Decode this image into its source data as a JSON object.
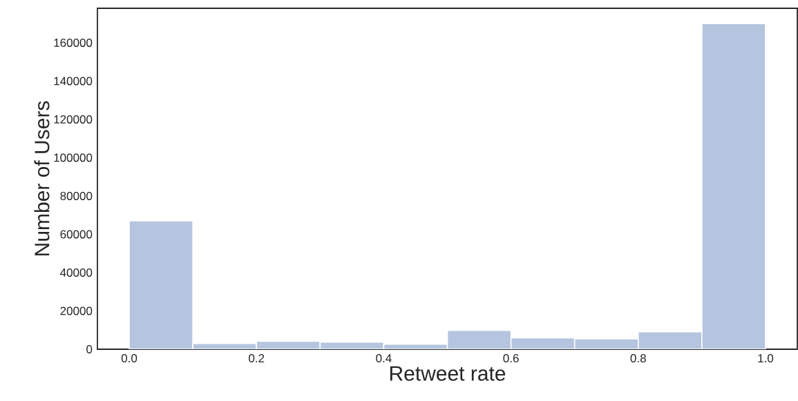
{
  "chart_data": {
    "type": "histogram",
    "xlabel": "Retweet rate",
    "ylabel": "Number of Users",
    "bins": [
      0.0,
      0.1,
      0.2,
      0.3,
      0.4,
      0.5,
      0.6,
      0.7,
      0.8,
      0.9,
      1.0
    ],
    "values": [
      67000,
      3000,
      4200,
      3700,
      2600,
      9800,
      6000,
      5400,
      9100,
      170000
    ],
    "color": "#b5c5df",
    "xlim": [
      -0.05,
      1.05
    ],
    "ylim": [
      0,
      178000
    ],
    "xticks": [
      {
        "value": 0.0,
        "label": "0.0"
      },
      {
        "value": 0.2,
        "label": "0.2"
      },
      {
        "value": 0.4,
        "label": "0.4"
      },
      {
        "value": 0.6,
        "label": "0.6"
      },
      {
        "value": 0.8,
        "label": "0.8"
      },
      {
        "value": 1.0,
        "label": "1.0"
      }
    ],
    "yticks": [
      0,
      20000,
      40000,
      60000,
      80000,
      100000,
      120000,
      140000,
      160000
    ],
    "grid": false
  }
}
